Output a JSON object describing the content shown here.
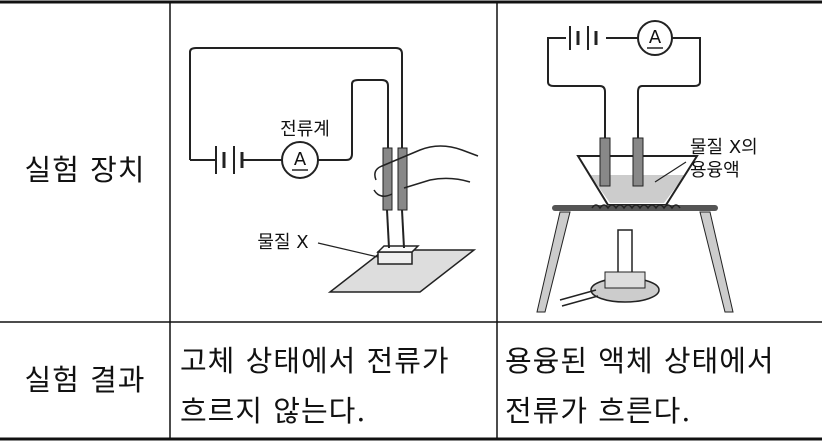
{
  "table": {
    "rows": [
      {
        "header": "실험 장치",
        "left_figure": {
          "ammeter_label": "전류계",
          "ammeter_symbol": "A",
          "substance_label": "물질 X"
        },
        "right_figure": {
          "ammeter_symbol": "A",
          "solution_label": [
            "물질 X의",
            "용융액"
          ]
        }
      },
      {
        "header": "실험 결과",
        "left_text": [
          "고체 상태에서 전류가",
          "흐르지 않는다."
        ],
        "right_text": [
          "용융된 액체 상태에서",
          "전류가 흐른다."
        ]
      }
    ]
  }
}
